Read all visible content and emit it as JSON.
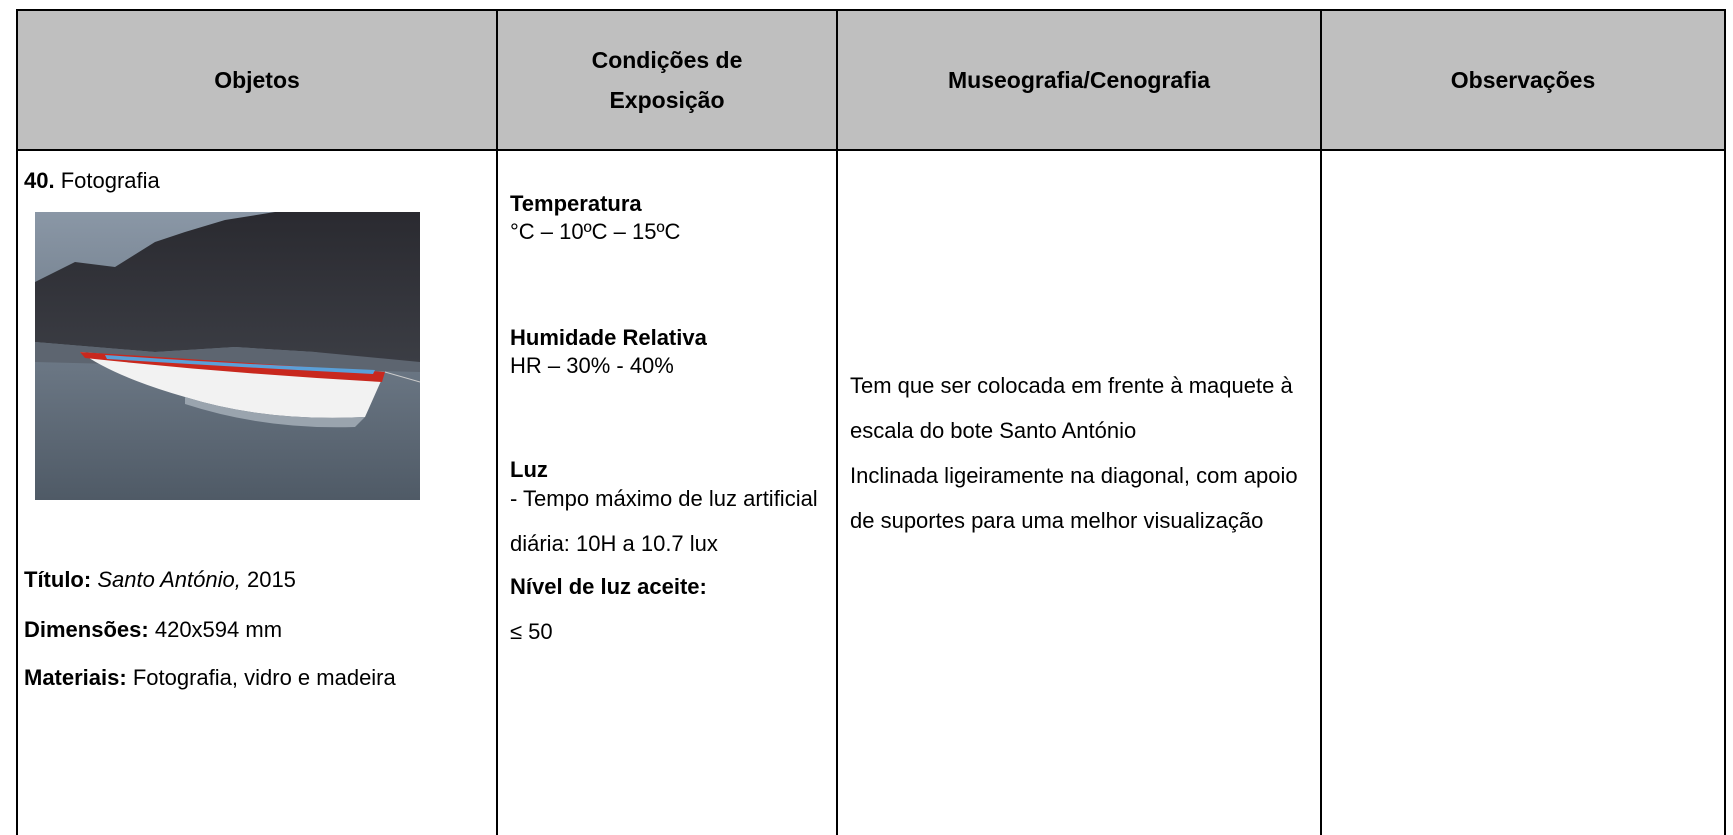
{
  "table": {
    "headers": [
      [
        "Objetos"
      ],
      [
        "Condições de",
        "Exposição"
      ],
      [
        "Museografia/Cenografia"
      ],
      [
        "Observações"
      ]
    ],
    "object": {
      "number": "40.",
      "type": "Fotografia",
      "title_label": "Título:",
      "title_value": "Santo António,",
      "title_year": "2015",
      "dimensions_label": "Dimensões:",
      "dimensions_value": "420x594 mm",
      "materials_label": "Materiais:",
      "materials_value": "Fotografia, vidro e madeira"
    },
    "conditions": {
      "temperature_label": "Temperatura",
      "temperature_value": "°C – 10ºC – 15ºC",
      "humidity_label": "Humidade Relativa",
      "humidity_value": "HR – 30% - 40%",
      "light_label": "Luz",
      "light_value": "- Tempo máximo de luz artificial diária: 10H a 10.7 lux",
      "light_level_label": "Nível de luz aceite:",
      "light_level_value": "≤ 50"
    },
    "museography": [
      "Tem que ser colocada em frente à maquete à escala do bote Santo António",
      "Inclinada ligeiramente na diagonal, com apoio de suportes para uma melhor visualização"
    ]
  }
}
